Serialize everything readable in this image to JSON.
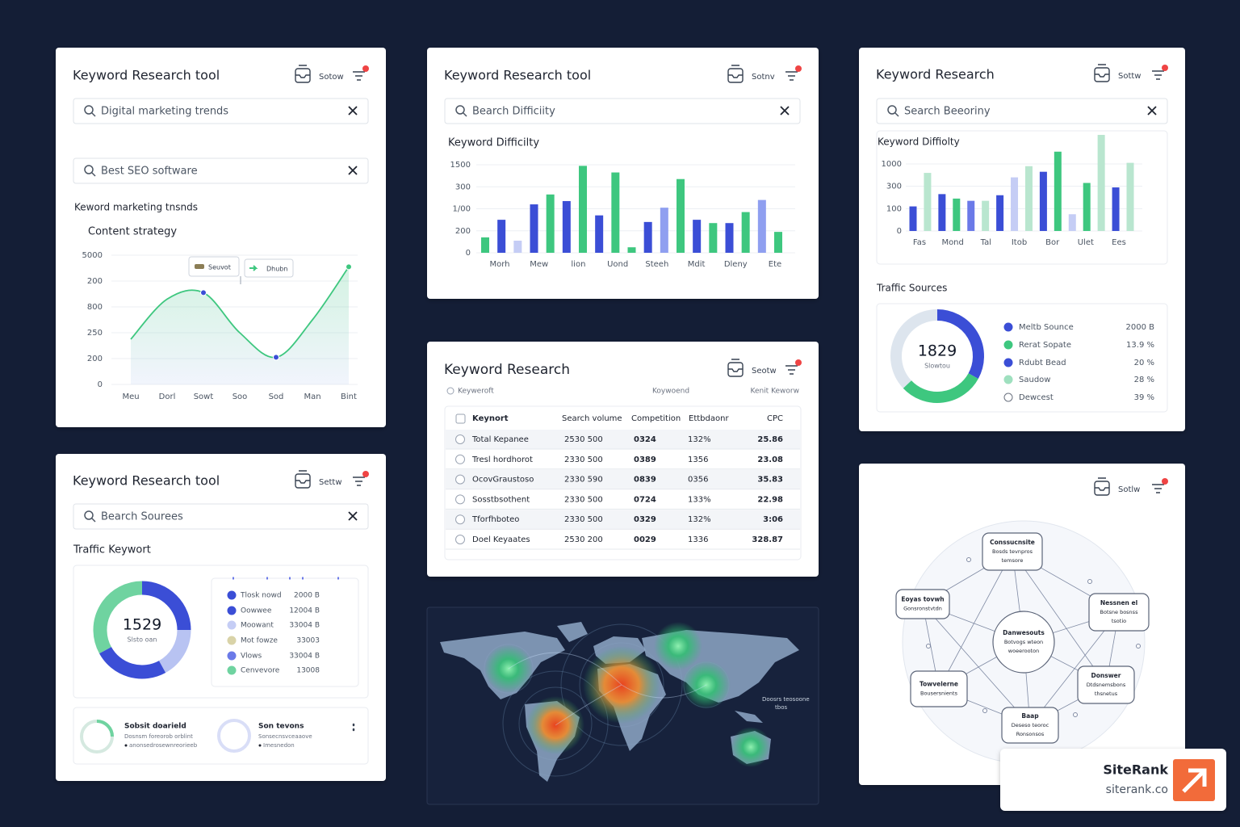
{
  "trends_panel": {
    "title": "Keyword Research tool",
    "button": "Sotow",
    "searches": [
      "Digital marketing trends",
      "Best SEO software"
    ],
    "section": "Keword marketing tnsnds",
    "subsection": "Content strategy",
    "legend": [
      "Seuvot",
      "Dhubn"
    ],
    "chart": {
      "categories": [
        "Meu",
        "Dorl",
        "Sowt",
        "Soo",
        "Sod",
        "Man",
        "Bint"
      ],
      "values": [
        1.75,
        3.3,
        3.55,
        2.0,
        1.05,
        2.5,
        4.55
      ],
      "ylim": [
        0,
        5
      ],
      "yticks": [
        0,
        {
          "value": 1,
          "label": "200"
        },
        {
          "value": 2,
          "label": "250"
        },
        {
          "value": 3,
          "label": "800"
        },
        {
          "value": 4,
          "label": "200"
        },
        {
          "value": 5,
          "label": "5000"
        }
      ],
      "color": "#3ec77f"
    }
  },
  "difficulty_panel": {
    "title": "Keyword Research tool",
    "button": "Sotnv",
    "search": "Bearch Difficiity",
    "section": "Keyword Difficilty",
    "chart": {
      "categories": [
        "Morh",
        "Mew",
        "lion",
        "Uond",
        "Steeh",
        "Mdit",
        "Dleny",
        "Ete"
      ],
      "values": [
        0.7,
        1.5,
        0.55,
        2.2,
        2.65,
        2.35,
        3.95,
        1.7,
        3.65,
        0.25,
        1.4,
        2.05,
        3.35,
        1.5,
        1.35,
        1.35,
        1.85,
        2.4,
        0.95
      ],
      "colors": [
        "#3ec77f",
        "#3b4ed6",
        "#c5cdf5",
        "#3b4ed6",
        "#3ec77f",
        "#3b4ed6",
        "#3ec77f",
        "#3b4ed6",
        "#3ec77f",
        "#3ec77f",
        "#3b4ed6",
        "#8f9ff0",
        "#3ec77f",
        "#3b4ed6",
        "#3ec77f",
        "#3b4ed6",
        "#3ec77f",
        "#8f9ff0",
        "#3ec77f"
      ],
      "ylim": [
        0,
        4
      ],
      "yticks": [
        0,
        {
          "value": 1,
          "label": "200"
        },
        {
          "value": 2,
          "label": "1/00"
        },
        {
          "value": 3,
          "label": "300"
        },
        {
          "value": 4,
          "label": "1500"
        }
      ]
    }
  },
  "research_panel": {
    "title": "Keyword Research",
    "button": "Sottw",
    "search": "Search Beeoriny",
    "section": "Keyword Diffiolty",
    "chart": {
      "categories": [
        "Fas",
        "Mond",
        "Tal",
        "Itob",
        "Bor",
        "Ulet",
        "Ees"
      ],
      "values": [
        1.1,
        2.6,
        1.65,
        1.45,
        1.35,
        1.35,
        1.6,
        2.4,
        2.9,
        2.65,
        3.55,
        0.75,
        2.15,
        4.3,
        1.95,
        3.05
      ],
      "colors": [
        "#3b4ed6",
        "#b9e6cf",
        "#3b4ed6",
        "#3ec77f",
        "#6b7ae8",
        "#b9e6cf",
        "#3b4ed6",
        "#c5cdf5",
        "#b9e6cf",
        "#3b4ed6",
        "#3ec77f",
        "#c5cdf5",
        "#3ec77f",
        "#b9e6cf",
        "#3b4ed6",
        "#b9e6cf"
      ],
      "ylim": [
        0,
        3
      ],
      "yticks": [
        0,
        {
          "value": 1,
          "label": "100"
        },
        {
          "value": 2,
          "label": "300"
        },
        {
          "value": 3,
          "label": "1000"
        }
      ]
    },
    "traffic_title": "Traffic Sources",
    "donut": {
      "center": "1829",
      "caption": "Slowtou",
      "values": [
        33,
        30,
        37
      ],
      "colors": [
        "#3b4ed6",
        "#3ec77f",
        "#dde5ee"
      ]
    },
    "legend": [
      {
        "label": "Meltb Sounce",
        "value": "2000 B",
        "color": "#3b4ed6"
      },
      {
        "label": "Rerat Sopate",
        "value": "13.9 %",
        "color": "#3ec77f"
      },
      {
        "label": "Rdubt Bead",
        "value": "20 %",
        "color": "#3b4ed6"
      },
      {
        "label": "Saudow",
        "value": "28 %",
        "color": "#9fe0bf"
      },
      {
        "label": "Dewcest",
        "value": "39 %",
        "color": "none"
      }
    ]
  },
  "traffic_panel": {
    "title": "Keyword Research tool",
    "button": "Settw",
    "search": "Bearch Sourees",
    "section": "Traffic Keywort",
    "donut": {
      "center": "1529",
      "caption": "Slsto oan",
      "values": [
        25,
        17,
        25,
        33
      ],
      "colors": [
        "#3b4ed6",
        "#b8c3f2",
        "#3b4ed6",
        "#6fd3a0"
      ]
    },
    "legend": [
      {
        "label": "Tlosk nowd",
        "value": "2000 B",
        "color": "#3b4ed6"
      },
      {
        "label": "Oowwee",
        "value": "12004 B",
        "color": "#3b4ed6"
      },
      {
        "label": "Moowant",
        "value": "33004 B",
        "color": "#c5cdf5"
      },
      {
        "label": "Mot fowze",
        "value": "33003",
        "color": "#d9d3a8"
      },
      {
        "label": "Vlows",
        "value": "33004 B",
        "color": "#6b7ae8"
      },
      {
        "label": "Cenvevore",
        "value": "13008",
        "color": "#6fd3a0"
      }
    ],
    "cards": [
      {
        "title": "Sobsit doarield",
        "lines": [
          "Dosnsm foreorob orblint",
          "anonsedrosewnreorieeb"
        ]
      },
      {
        "title": "Son tevons",
        "lines": [
          "Sonsecnsvceaaove",
          "Imesnedon"
        ]
      }
    ]
  },
  "table_panel": {
    "title": "Keyword Research",
    "button": "Seotw",
    "subheader": [
      "Keyweroft",
      "Koywoend",
      "Kenit Keworw"
    ],
    "table": {
      "columns": [
        "Keynort",
        "Search volume",
        "Competition",
        "Ettbdaonr",
        "CPC"
      ],
      "rows": [
        [
          "Total Kepanee",
          "2530 500",
          "0324",
          "132%",
          "25.86"
        ],
        [
          "Tresl hordhorot",
          "2330 500",
          "0389",
          "1356",
          "23.08"
        ],
        [
          "OcovGraustoso",
          "2330 590",
          "0839",
          "0356",
          "35.83"
        ],
        [
          "Sosstbsothent",
          "2330 500",
          "0724",
          "133%",
          "22.98"
        ],
        [
          "Tforfhboteo",
          "2330 500",
          "0329",
          "132%",
          "3:06"
        ],
        [
          "Doel Keyaates",
          "2530 200",
          "0029",
          "1336",
          "328.87"
        ]
      ]
    }
  },
  "map_panel": {
    "caption": [
      "Doosrs teosoone",
      "tbos"
    ]
  },
  "network_panel": {
    "button": "Sotlw",
    "nodes": [
      {
        "lines": [
          "Conssucnsite",
          "Bosds tevnpros",
          "temsore"
        ]
      },
      {
        "lines": [
          "Eoyas tovwh",
          "Gonsronstvtdn"
        ]
      },
      {
        "lines": [
          "Nessnen el",
          "Botsne bosnss",
          "tsotio"
        ]
      },
      {
        "lines": [
          "Danwesouts",
          "Botvogs wteon",
          "woeerooton"
        ]
      },
      {
        "lines": [
          "Towvelerne",
          "Bousersnients"
        ]
      },
      {
        "lines": [
          "Donswer",
          "Dtdsnemsbons",
          "thsnetus"
        ]
      },
      {
        "lines": [
          "Baap",
          "Deseso teoroc",
          "Ronsonsos"
        ]
      }
    ]
  },
  "brand": {
    "name": "SiteRank",
    "domain": "siterank.co"
  }
}
